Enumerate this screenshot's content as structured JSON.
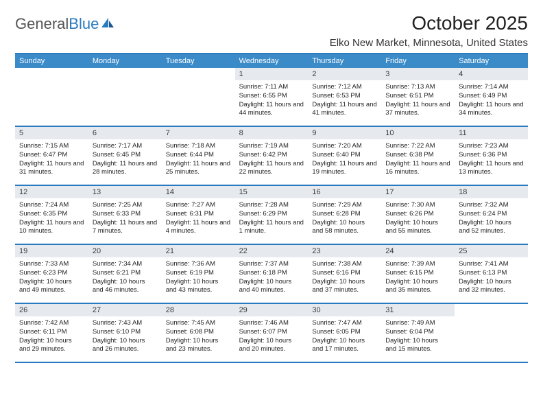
{
  "logo": {
    "text1": "General",
    "text2": "Blue"
  },
  "title": "October 2025",
  "location": "Elko New Market, Minnesota, United States",
  "colors": {
    "header_bg": "#3b8bc9",
    "border": "#2a7ac0",
    "daynum_bg": "#e6eaee",
    "text": "#212121",
    "white": "#ffffff"
  },
  "dayNames": [
    "Sunday",
    "Monday",
    "Tuesday",
    "Wednesday",
    "Thursday",
    "Friday",
    "Saturday"
  ],
  "weeks": [
    [
      {
        "n": "",
        "sr": "",
        "ss": "",
        "dl": ""
      },
      {
        "n": "",
        "sr": "",
        "ss": "",
        "dl": ""
      },
      {
        "n": "",
        "sr": "",
        "ss": "",
        "dl": ""
      },
      {
        "n": "1",
        "sr": "Sunrise: 7:11 AM",
        "ss": "Sunset: 6:55 PM",
        "dl": "Daylight: 11 hours and 44 minutes."
      },
      {
        "n": "2",
        "sr": "Sunrise: 7:12 AM",
        "ss": "Sunset: 6:53 PM",
        "dl": "Daylight: 11 hours and 41 minutes."
      },
      {
        "n": "3",
        "sr": "Sunrise: 7:13 AM",
        "ss": "Sunset: 6:51 PM",
        "dl": "Daylight: 11 hours and 37 minutes."
      },
      {
        "n": "4",
        "sr": "Sunrise: 7:14 AM",
        "ss": "Sunset: 6:49 PM",
        "dl": "Daylight: 11 hours and 34 minutes."
      }
    ],
    [
      {
        "n": "5",
        "sr": "Sunrise: 7:15 AM",
        "ss": "Sunset: 6:47 PM",
        "dl": "Daylight: 11 hours and 31 minutes."
      },
      {
        "n": "6",
        "sr": "Sunrise: 7:17 AM",
        "ss": "Sunset: 6:45 PM",
        "dl": "Daylight: 11 hours and 28 minutes."
      },
      {
        "n": "7",
        "sr": "Sunrise: 7:18 AM",
        "ss": "Sunset: 6:44 PM",
        "dl": "Daylight: 11 hours and 25 minutes."
      },
      {
        "n": "8",
        "sr": "Sunrise: 7:19 AM",
        "ss": "Sunset: 6:42 PM",
        "dl": "Daylight: 11 hours and 22 minutes."
      },
      {
        "n": "9",
        "sr": "Sunrise: 7:20 AM",
        "ss": "Sunset: 6:40 PM",
        "dl": "Daylight: 11 hours and 19 minutes."
      },
      {
        "n": "10",
        "sr": "Sunrise: 7:22 AM",
        "ss": "Sunset: 6:38 PM",
        "dl": "Daylight: 11 hours and 16 minutes."
      },
      {
        "n": "11",
        "sr": "Sunrise: 7:23 AM",
        "ss": "Sunset: 6:36 PM",
        "dl": "Daylight: 11 hours and 13 minutes."
      }
    ],
    [
      {
        "n": "12",
        "sr": "Sunrise: 7:24 AM",
        "ss": "Sunset: 6:35 PM",
        "dl": "Daylight: 11 hours and 10 minutes."
      },
      {
        "n": "13",
        "sr": "Sunrise: 7:25 AM",
        "ss": "Sunset: 6:33 PM",
        "dl": "Daylight: 11 hours and 7 minutes."
      },
      {
        "n": "14",
        "sr": "Sunrise: 7:27 AM",
        "ss": "Sunset: 6:31 PM",
        "dl": "Daylight: 11 hours and 4 minutes."
      },
      {
        "n": "15",
        "sr": "Sunrise: 7:28 AM",
        "ss": "Sunset: 6:29 PM",
        "dl": "Daylight: 11 hours and 1 minute."
      },
      {
        "n": "16",
        "sr": "Sunrise: 7:29 AM",
        "ss": "Sunset: 6:28 PM",
        "dl": "Daylight: 10 hours and 58 minutes."
      },
      {
        "n": "17",
        "sr": "Sunrise: 7:30 AM",
        "ss": "Sunset: 6:26 PM",
        "dl": "Daylight: 10 hours and 55 minutes."
      },
      {
        "n": "18",
        "sr": "Sunrise: 7:32 AM",
        "ss": "Sunset: 6:24 PM",
        "dl": "Daylight: 10 hours and 52 minutes."
      }
    ],
    [
      {
        "n": "19",
        "sr": "Sunrise: 7:33 AM",
        "ss": "Sunset: 6:23 PM",
        "dl": "Daylight: 10 hours and 49 minutes."
      },
      {
        "n": "20",
        "sr": "Sunrise: 7:34 AM",
        "ss": "Sunset: 6:21 PM",
        "dl": "Daylight: 10 hours and 46 minutes."
      },
      {
        "n": "21",
        "sr": "Sunrise: 7:36 AM",
        "ss": "Sunset: 6:19 PM",
        "dl": "Daylight: 10 hours and 43 minutes."
      },
      {
        "n": "22",
        "sr": "Sunrise: 7:37 AM",
        "ss": "Sunset: 6:18 PM",
        "dl": "Daylight: 10 hours and 40 minutes."
      },
      {
        "n": "23",
        "sr": "Sunrise: 7:38 AM",
        "ss": "Sunset: 6:16 PM",
        "dl": "Daylight: 10 hours and 37 minutes."
      },
      {
        "n": "24",
        "sr": "Sunrise: 7:39 AM",
        "ss": "Sunset: 6:15 PM",
        "dl": "Daylight: 10 hours and 35 minutes."
      },
      {
        "n": "25",
        "sr": "Sunrise: 7:41 AM",
        "ss": "Sunset: 6:13 PM",
        "dl": "Daylight: 10 hours and 32 minutes."
      }
    ],
    [
      {
        "n": "26",
        "sr": "Sunrise: 7:42 AM",
        "ss": "Sunset: 6:11 PM",
        "dl": "Daylight: 10 hours and 29 minutes."
      },
      {
        "n": "27",
        "sr": "Sunrise: 7:43 AM",
        "ss": "Sunset: 6:10 PM",
        "dl": "Daylight: 10 hours and 26 minutes."
      },
      {
        "n": "28",
        "sr": "Sunrise: 7:45 AM",
        "ss": "Sunset: 6:08 PM",
        "dl": "Daylight: 10 hours and 23 minutes."
      },
      {
        "n": "29",
        "sr": "Sunrise: 7:46 AM",
        "ss": "Sunset: 6:07 PM",
        "dl": "Daylight: 10 hours and 20 minutes."
      },
      {
        "n": "30",
        "sr": "Sunrise: 7:47 AM",
        "ss": "Sunset: 6:05 PM",
        "dl": "Daylight: 10 hours and 17 minutes."
      },
      {
        "n": "31",
        "sr": "Sunrise: 7:49 AM",
        "ss": "Sunset: 6:04 PM",
        "dl": "Daylight: 10 hours and 15 minutes."
      },
      {
        "n": "",
        "sr": "",
        "ss": "",
        "dl": ""
      }
    ]
  ]
}
